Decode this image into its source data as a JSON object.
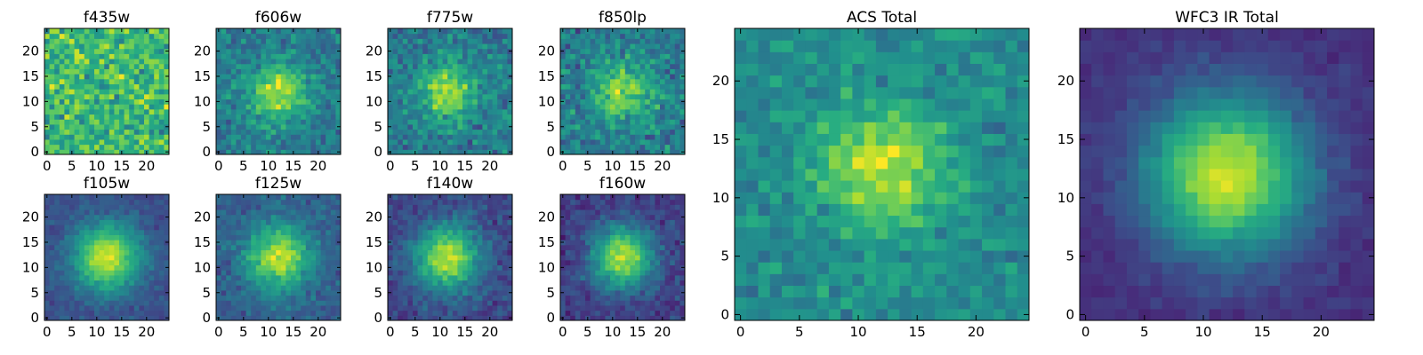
{
  "colormap": "viridis",
  "colormap_stops": [
    "#440154",
    "#472c7a",
    "#3b518b",
    "#2c718e",
    "#21908d",
    "#27ad81",
    "#5cc863",
    "#aadc32",
    "#fde725"
  ],
  "chart_data": [
    {
      "type": "heatmap",
      "title": "f435w",
      "xticks": [
        0,
        5,
        10,
        15,
        20
      ],
      "yticks": [
        0,
        5,
        10,
        15,
        20
      ],
      "xlim": [
        -0.5,
        24.5
      ],
      "ylim": [
        -0.5,
        24.5
      ],
      "grid": [
        25,
        25
      ],
      "source_center": [
        12,
        12
      ],
      "source_width": 4.5,
      "source_amplitude": 0.0,
      "background": 0.68,
      "noise": 0.22,
      "seed": 11
    },
    {
      "type": "heatmap",
      "title": "f606w",
      "xticks": [
        0,
        5,
        10,
        15,
        20
      ],
      "yticks": [
        0,
        5,
        10,
        15,
        20
      ],
      "xlim": [
        -0.5,
        24.5
      ],
      "ylim": [
        -0.5,
        24.5
      ],
      "grid": [
        25,
        25
      ],
      "source_center": [
        12,
        12
      ],
      "source_width": 4.0,
      "source_amplitude": 0.45,
      "background": 0.42,
      "noise": 0.15,
      "seed": 23
    },
    {
      "type": "heatmap",
      "title": "f775w",
      "xticks": [
        0,
        5,
        10,
        15,
        20
      ],
      "yticks": [
        0,
        5,
        10,
        15,
        20
      ],
      "xlim": [
        -0.5,
        24.5
      ],
      "ylim": [
        -0.5,
        24.5
      ],
      "grid": [
        25,
        25
      ],
      "source_center": [
        11.5,
        12
      ],
      "source_width": 3.8,
      "source_amplitude": 0.45,
      "background": 0.42,
      "noise": 0.16,
      "seed": 37
    },
    {
      "type": "heatmap",
      "title": "f850lp",
      "xticks": [
        0,
        5,
        10,
        15,
        20
      ],
      "yticks": [
        0,
        5,
        10,
        15,
        20
      ],
      "xlim": [
        -0.5,
        24.5
      ],
      "ylim": [
        -0.5,
        24.5
      ],
      "grid": [
        25,
        25
      ],
      "source_center": [
        12,
        12
      ],
      "source_width": 4.0,
      "source_amplitude": 0.42,
      "background": 0.42,
      "noise": 0.18,
      "seed": 41
    },
    {
      "type": "heatmap",
      "title": "f105w",
      "xticks": [
        0,
        5,
        10,
        15,
        20
      ],
      "yticks": [
        0,
        5,
        10,
        15,
        20
      ],
      "xlim": [
        -0.5,
        24.5
      ],
      "ylim": [
        -0.5,
        24.5
      ],
      "grid": [
        25,
        25
      ],
      "source_center": [
        12,
        12
      ],
      "source_width": 4.6,
      "source_amplitude": 0.68,
      "background": 0.25,
      "noise": 0.07,
      "seed": 53
    },
    {
      "type": "heatmap",
      "title": "f125w",
      "xticks": [
        0,
        5,
        10,
        15,
        20
      ],
      "yticks": [
        0,
        5,
        10,
        15,
        20
      ],
      "xlim": [
        -0.5,
        24.5
      ],
      "ylim": [
        -0.5,
        24.5
      ],
      "grid": [
        25,
        25
      ],
      "source_center": [
        12,
        12
      ],
      "source_width": 4.5,
      "source_amplitude": 0.6,
      "background": 0.3,
      "noise": 0.1,
      "seed": 67
    },
    {
      "type": "heatmap",
      "title": "f140w",
      "xticks": [
        0,
        5,
        10,
        15,
        20
      ],
      "yticks": [
        0,
        5,
        10,
        15,
        20
      ],
      "xlim": [
        -0.5,
        24.5
      ],
      "ylim": [
        -0.5,
        24.5
      ],
      "grid": [
        25,
        25
      ],
      "source_center": [
        11.5,
        12
      ],
      "source_width": 4.5,
      "source_amplitude": 0.68,
      "background": 0.22,
      "noise": 0.1,
      "seed": 79
    },
    {
      "type": "heatmap",
      "title": "f160w",
      "xticks": [
        0,
        5,
        10,
        15,
        20
      ],
      "yticks": [
        0,
        5,
        10,
        15,
        20
      ],
      "xlim": [
        -0.5,
        24.5
      ],
      "ylim": [
        -0.5,
        24.5
      ],
      "grid": [
        25,
        25
      ],
      "source_center": [
        12,
        12
      ],
      "source_width": 4.3,
      "source_amplitude": 0.72,
      "background": 0.18,
      "noise": 0.1,
      "seed": 83
    },
    {
      "type": "heatmap",
      "title": "ACS Total",
      "xticks": [
        0,
        5,
        10,
        15,
        20
      ],
      "yticks": [
        0,
        5,
        10,
        15,
        20
      ],
      "xlim": [
        -0.5,
        24.5
      ],
      "ylim": [
        -0.5,
        24.5
      ],
      "grid": [
        25,
        25
      ],
      "source_center": [
        12,
        12.5
      ],
      "source_width": 3.8,
      "source_amplitude": 0.42,
      "background": 0.48,
      "noise": 0.12,
      "seed": 97
    },
    {
      "type": "heatmap",
      "title": "WFC3 IR Total",
      "xticks": [
        0,
        5,
        10,
        15,
        20
      ],
      "yticks": [
        0,
        5,
        10,
        15,
        20
      ],
      "xlim": [
        -0.5,
        24.5
      ],
      "ylim": [
        -0.5,
        24.5
      ],
      "grid": [
        25,
        25
      ],
      "source_center": [
        12,
        12
      ],
      "source_width": 4.8,
      "source_amplitude": 0.78,
      "background": 0.14,
      "noise": 0.05,
      "seed": 101
    }
  ]
}
